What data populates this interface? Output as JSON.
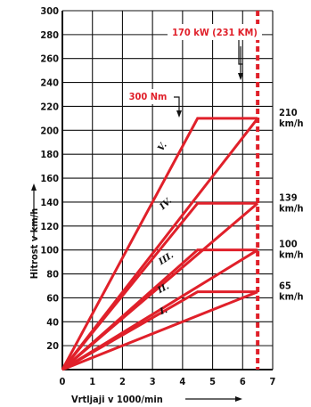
{
  "chart_data": {
    "type": "line",
    "xlabel": "Vrtljaji v 1000/min",
    "ylabel": "Hitrost v km/h",
    "xlim": [
      0,
      7
    ],
    "ylim": [
      0,
      300
    ],
    "x_ticks": [
      "0",
      "1",
      "2",
      "3",
      "4",
      "5",
      "6",
      "7"
    ],
    "y_ticks": [
      "20",
      "40",
      "60",
      "80",
      "100",
      "120",
      "140",
      "160",
      "180",
      "200",
      "220",
      "240",
      "260",
      "280",
      "300"
    ],
    "max_power_rpm": 6.5,
    "max_power_label": "170 kW (231 KM)",
    "max_torque_label": "300 Nm",
    "gears": [
      {
        "name": "I.",
        "x": [
          0,
          4.5,
          6.5
        ],
        "y": [
          0,
          65,
          65
        ],
        "label_at": [
          3.4,
          47
        ]
      },
      {
        "name": "II.",
        "x": [
          0,
          4.5,
          6.5
        ],
        "y": [
          0,
          65,
          65
        ],
        "label_at": [
          3.4,
          66
        ]
      },
      {
        "name": "III.",
        "x": [
          0,
          4.5,
          6.5
        ],
        "y": [
          0,
          100,
          100
        ],
        "label_at": [
          3.5,
          91
        ]
      },
      {
        "name": "IV.",
        "x": [
          0,
          4.5,
          6.5
        ],
        "y": [
          0,
          139,
          139
        ],
        "label_at": [
          3.5,
          137
        ]
      },
      {
        "name": "V.",
        "x": [
          0,
          4.5,
          6.5
        ],
        "y": [
          0,
          210,
          210
        ],
        "label_at": [
          3.4,
          185
        ]
      }
    ],
    "gear_rays": [
      {
        "x": [
          0,
          6.5
        ],
        "y": [
          0,
          65
        ]
      },
      {
        "x": [
          0,
          6.5
        ],
        "y": [
          0,
          100
        ]
      },
      {
        "x": [
          0,
          6.5
        ],
        "y": [
          0,
          139
        ]
      },
      {
        "x": [
          0,
          6.5
        ],
        "y": [
          0,
          210
        ]
      }
    ],
    "top_speeds": [
      {
        "value": "65",
        "unit": "km/h",
        "y": 65
      },
      {
        "value": "100",
        "unit": "km/h",
        "y": 100
      },
      {
        "value": "139",
        "unit": "km/h",
        "y": 139
      },
      {
        "value": "210",
        "unit": "km/h",
        "y": 210
      }
    ],
    "colors": {
      "line": "#e0202a",
      "grid": "#111111"
    }
  }
}
